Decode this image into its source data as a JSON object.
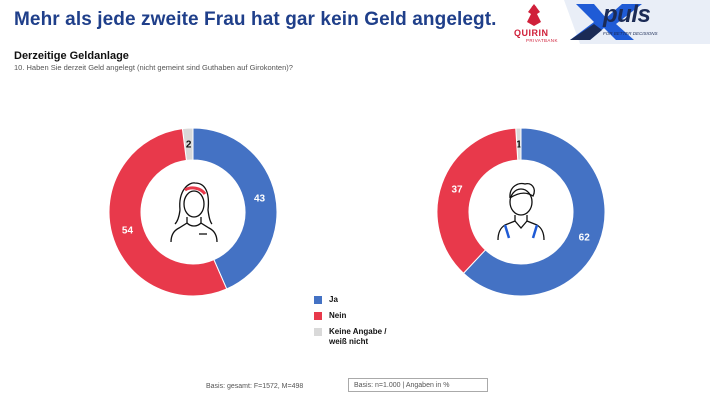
{
  "header": {
    "headline": "Mehr als jede zweite Frau hat gar kein Geld angelegt.",
    "subtitle": "Derzeitige Geldanlage",
    "question": "10. Haben Sie derzeit Geld angelegt (nicht gemeint sind Guthaben auf Girokonten)?"
  },
  "brand": {
    "quirin": "QUIRIN",
    "quirin_sub": "PRIVATBANK",
    "xpuls": "puls",
    "xpuls_claim": "FOR BETTER DECISIONS"
  },
  "colors": {
    "ja": "#4472c4",
    "nein": "#e8394b",
    "keine_angabe": "#d9d9d9",
    "headline": "#1f3f8a"
  },
  "chart_data": [
    {
      "type": "pie",
      "subtype": "donut",
      "group_icon": "woman-icon",
      "categories": [
        "Ja",
        "Nein",
        "Keine Angabe / weiß nicht"
      ],
      "values": [
        43,
        54,
        2
      ],
      "unit": "%"
    },
    {
      "type": "pie",
      "subtype": "donut",
      "group_icon": "man-icon",
      "categories": [
        "Ja",
        "Nein",
        "Keine Angabe / weiß nicht"
      ],
      "values": [
        62,
        37,
        1
      ],
      "unit": "%"
    }
  ],
  "legend": {
    "items": [
      {
        "label": "Ja",
        "color_key": "ja"
      },
      {
        "label": "Nein",
        "color_key": "nein"
      },
      {
        "label": "Keine Angabe / weiß nicht",
        "color_key": "keine_angabe"
      }
    ]
  },
  "footer": {
    "basis_left": "Basis: gesamt: F=1572, M=498",
    "basis_box": "Basis: n=1.000  |  Angaben in %"
  }
}
